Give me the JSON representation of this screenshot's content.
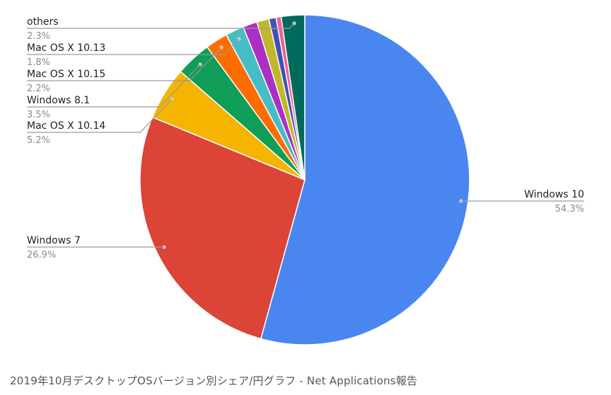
{
  "caption": "2019年10月デスクトップOSバージョン別シェア/円グラフ - Net Applications報告",
  "chart_data": {
    "type": "pie",
    "title": "",
    "start": "12 o'clock",
    "direction": "clockwise",
    "slices": [
      {
        "label": "Windows 10",
        "value": 54.3,
        "display": "54.3%",
        "color": "#4a86f0"
      },
      {
        "label": "Windows 7",
        "value": 26.9,
        "display": "26.9%",
        "color": "#db4437"
      },
      {
        "label": "Mac OS X 10.14",
        "value": 5.2,
        "display": "5.2%",
        "color": "#f4b400"
      },
      {
        "label": "Windows 8.1",
        "value": 3.5,
        "display": "3.5%",
        "color": "#0f9d58"
      },
      {
        "label": "Mac OS X 10.15",
        "value": 2.2,
        "display": "2.2%",
        "color": "#ff6d00"
      },
      {
        "label": "Mac OS X 10.13",
        "value": 1.8,
        "display": "1.8%",
        "color": "#46bdc6"
      },
      {
        "label": "",
        "value": 1.4,
        "display": "",
        "color": "#ab30c4"
      },
      {
        "label": "",
        "value": 1.2,
        "display": "",
        "color": "#c2b72a"
      },
      {
        "label": "",
        "value": 0.7,
        "display": "",
        "color": "#3f51b5"
      },
      {
        "label": "",
        "value": 0.5,
        "display": "",
        "color": "#f06292"
      },
      {
        "label": "others",
        "value": 2.3,
        "display": "2.3%",
        "color": "#006a5c"
      }
    ],
    "legend": "none (leader-line labels)"
  }
}
